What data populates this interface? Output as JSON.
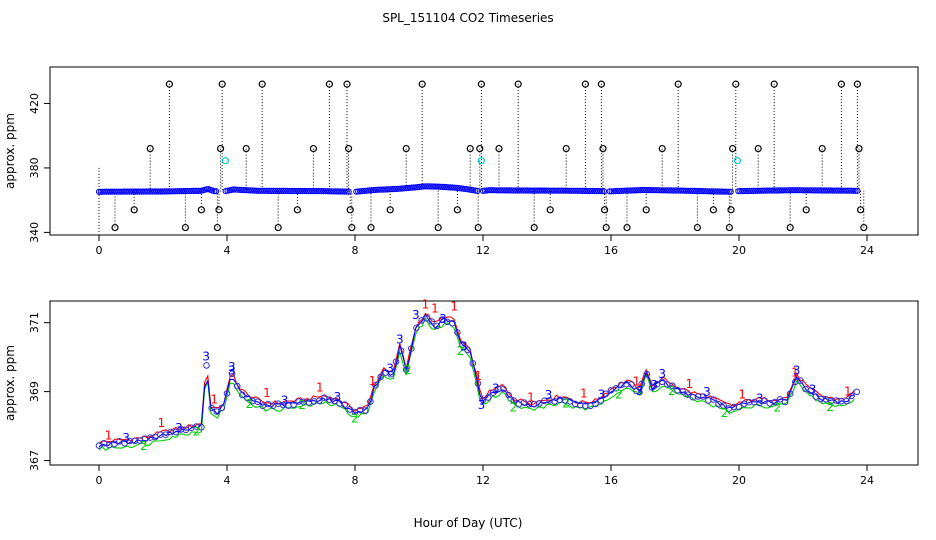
{
  "chart_data": [
    {
      "type": "scatter",
      "title": "SPL_151104  CO2 Timeseries",
      "xlabel": "",
      "ylabel": "approx. ppm",
      "xlim": [
        -0.5,
        24.5
      ],
      "ylim": [
        339,
        442
      ],
      "xticks": [
        0,
        4,
        8,
        12,
        16,
        20,
        24
      ],
      "yticks": [
        340,
        380,
        420
      ],
      "baseline": [
        [
          0,
          365.2
        ],
        [
          2,
          365.4
        ],
        [
          3.2,
          365.8
        ],
        [
          3.4,
          367
        ],
        [
          3.6,
          365.6
        ],
        [
          3.9,
          365.4
        ],
        [
          4.2,
          366.6
        ],
        [
          5,
          365.8
        ],
        [
          7,
          365.6
        ],
        [
          8,
          365.2
        ],
        [
          8.6,
          366.3
        ],
        [
          9.4,
          367.1
        ],
        [
          9.8,
          367.8
        ],
        [
          10.2,
          368.6
        ],
        [
          10.7,
          368.3
        ],
        [
          11.2,
          367.6
        ],
        [
          11.5,
          366.8
        ],
        [
          11.9,
          365.5
        ],
        [
          12.2,
          366.2
        ],
        [
          13,
          366
        ],
        [
          15,
          365.8
        ],
        [
          16,
          365.5
        ],
        [
          17,
          366.3
        ],
        [
          18,
          366
        ],
        [
          19.7,
          365.2
        ],
        [
          20,
          365.6
        ],
        [
          21.7,
          366.2
        ],
        [
          23.7,
          365.8
        ]
      ],
      "outliers": [
        {
          "x": 0.5,
          "y": 343
        },
        {
          "x": 1.1,
          "y": 354
        },
        {
          "x": 1.6,
          "y": 392
        },
        {
          "x": 2.2,
          "y": 432
        },
        {
          "x": 2.7,
          "y": 343
        },
        {
          "x": 3.2,
          "y": 354
        },
        {
          "x": 3.7,
          "y": 343
        },
        {
          "x": 3.75,
          "y": 354
        },
        {
          "x": 3.8,
          "y": 392
        },
        {
          "x": 3.85,
          "y": 432
        },
        {
          "x": 4.6,
          "y": 392
        },
        {
          "x": 5.1,
          "y": 432
        },
        {
          "x": 5.6,
          "y": 343
        },
        {
          "x": 6.2,
          "y": 354
        },
        {
          "x": 6.7,
          "y": 392
        },
        {
          "x": 7.2,
          "y": 432
        },
        {
          "x": 7.75,
          "y": 432
        },
        {
          "x": 7.8,
          "y": 392
        },
        {
          "x": 7.85,
          "y": 354
        },
        {
          "x": 7.9,
          "y": 343
        },
        {
          "x": 8.5,
          "y": 343
        },
        {
          "x": 9.1,
          "y": 354
        },
        {
          "x": 9.6,
          "y": 392
        },
        {
          "x": 10.1,
          "y": 432
        },
        {
          "x": 10.6,
          "y": 343
        },
        {
          "x": 11.2,
          "y": 354
        },
        {
          "x": 11.6,
          "y": 392
        },
        {
          "x": 11.85,
          "y": 343
        },
        {
          "x": 11.9,
          "y": 392
        },
        {
          "x": 11.95,
          "y": 432
        },
        {
          "x": 12.5,
          "y": 392
        },
        {
          "x": 13.1,
          "y": 432
        },
        {
          "x": 13.6,
          "y": 343
        },
        {
          "x": 14.1,
          "y": 354
        },
        {
          "x": 14.6,
          "y": 392
        },
        {
          "x": 15.2,
          "y": 432
        },
        {
          "x": 15.7,
          "y": 432
        },
        {
          "x": 15.75,
          "y": 392
        },
        {
          "x": 15.8,
          "y": 354
        },
        {
          "x": 15.85,
          "y": 343
        },
        {
          "x": 16.5,
          "y": 343
        },
        {
          "x": 17.1,
          "y": 354
        },
        {
          "x": 17.6,
          "y": 392
        },
        {
          "x": 18.1,
          "y": 432
        },
        {
          "x": 18.7,
          "y": 343
        },
        {
          "x": 19.2,
          "y": 354
        },
        {
          "x": 19.7,
          "y": 343
        },
        {
          "x": 19.75,
          "y": 354
        },
        {
          "x": 19.8,
          "y": 392
        },
        {
          "x": 19.9,
          "y": 432
        },
        {
          "x": 20.6,
          "y": 392
        },
        {
          "x": 21.1,
          "y": 432
        },
        {
          "x": 21.6,
          "y": 343
        },
        {
          "x": 22.1,
          "y": 354
        },
        {
          "x": 22.6,
          "y": 392
        },
        {
          "x": 23.2,
          "y": 432
        },
        {
          "x": 23.7,
          "y": 432
        },
        {
          "x": 23.75,
          "y": 392
        },
        {
          "x": 23.8,
          "y": 354
        },
        {
          "x": 23.9,
          "y": 343
        }
      ],
      "cyan_points": [
        {
          "x": 3.95,
          "y": 384.5
        },
        {
          "x": 11.95,
          "y": 384.5
        },
        {
          "x": 19.95,
          "y": 384.5
        }
      ]
    },
    {
      "type": "line",
      "title": "",
      "xlabel": "Hour of Day (UTC)",
      "ylabel": "approx. ppm",
      "xlim": [
        -0.5,
        24.5
      ],
      "ylim": [
        366.9,
        371.6
      ],
      "xticks": [
        0,
        4,
        8,
        12,
        16,
        20,
        24
      ],
      "yticks": [
        367,
        369,
        371
      ],
      "series_labels": [
        "1",
        "2",
        "3"
      ],
      "series_colors": [
        "#ff0000",
        "#00cc00",
        "#0000ff"
      ],
      "curve": [
        [
          0,
          367.45
        ],
        [
          0.5,
          367.5
        ],
        [
          1,
          367.55
        ],
        [
          1.5,
          367.6
        ],
        [
          2,
          367.75
        ],
        [
          2.5,
          367.85
        ],
        [
          3,
          367.95
        ],
        [
          3.2,
          368.0
        ],
        [
          3.35,
          369.8
        ],
        [
          3.5,
          368.5
        ],
        [
          3.7,
          368.4
        ],
        [
          3.9,
          368.6
        ],
        [
          4.15,
          369.5
        ],
        [
          4.4,
          369.0
        ],
        [
          4.8,
          368.75
        ],
        [
          5.2,
          368.6
        ],
        [
          5.6,
          368.6
        ],
        [
          6,
          368.65
        ],
        [
          6.5,
          368.7
        ],
        [
          7,
          368.8
        ],
        [
          7.5,
          368.7
        ],
        [
          7.8,
          368.5
        ],
        [
          8,
          368.4
        ],
        [
          8.4,
          368.5
        ],
        [
          8.6,
          369.1
        ],
        [
          8.9,
          369.6
        ],
        [
          9.2,
          369.5
        ],
        [
          9.4,
          370.3
        ],
        [
          9.6,
          369.6
        ],
        [
          9.9,
          370.8
        ],
        [
          10.2,
          371.2
        ],
        [
          10.5,
          370.9
        ],
        [
          10.8,
          371.1
        ],
        [
          11.1,
          371.0
        ],
        [
          11.3,
          370.4
        ],
        [
          11.6,
          370.1
        ],
        [
          11.8,
          369.4
        ],
        [
          11.95,
          368.7
        ],
        [
          12.2,
          368.9
        ],
        [
          12.6,
          369.1
        ],
        [
          13,
          368.7
        ],
        [
          13.5,
          368.6
        ],
        [
          14,
          368.7
        ],
        [
          14.5,
          368.8
        ],
        [
          15,
          368.6
        ],
        [
          15.5,
          368.65
        ],
        [
          16,
          369.0
        ],
        [
          16.5,
          369.25
        ],
        [
          16.9,
          369.0
        ],
        [
          17.1,
          369.6
        ],
        [
          17.3,
          369.1
        ],
        [
          17.6,
          369.3
        ],
        [
          18,
          369.1
        ],
        [
          18.5,
          368.9
        ],
        [
          19,
          368.8
        ],
        [
          19.5,
          368.6
        ],
        [
          19.8,
          368.5
        ],
        [
          20,
          368.6
        ],
        [
          20.5,
          368.7
        ],
        [
          21,
          368.7
        ],
        [
          21.5,
          368.75
        ],
        [
          21.8,
          369.4
        ],
        [
          22.2,
          369.0
        ],
        [
          22.6,
          368.8
        ],
        [
          23,
          368.7
        ],
        [
          23.4,
          368.75
        ],
        [
          23.7,
          369.0
        ]
      ],
      "peak_labels": [
        {
          "series": "3",
          "x": 3.35,
          "y": 369.9
        },
        {
          "series": "3",
          "x": 4.15,
          "y": 369.6
        },
        {
          "series": "3",
          "x": 9.4,
          "y": 370.4
        },
        {
          "series": "3",
          "x": 9.9,
          "y": 371.1
        },
        {
          "series": "3",
          "x": 11.4,
          "y": 370.2
        },
        {
          "series": "1",
          "x": 11.1,
          "y": 371.35
        },
        {
          "series": "1",
          "x": 10.5,
          "y": 371.3
        },
        {
          "series": "3",
          "x": 16.9,
          "y": 368.9
        },
        {
          "series": "3",
          "x": 17.6,
          "y": 369.4
        },
        {
          "series": "3",
          "x": 21.8,
          "y": 369.5
        },
        {
          "series": "3",
          "x": 11.95,
          "y": 368.5
        }
      ]
    }
  ]
}
